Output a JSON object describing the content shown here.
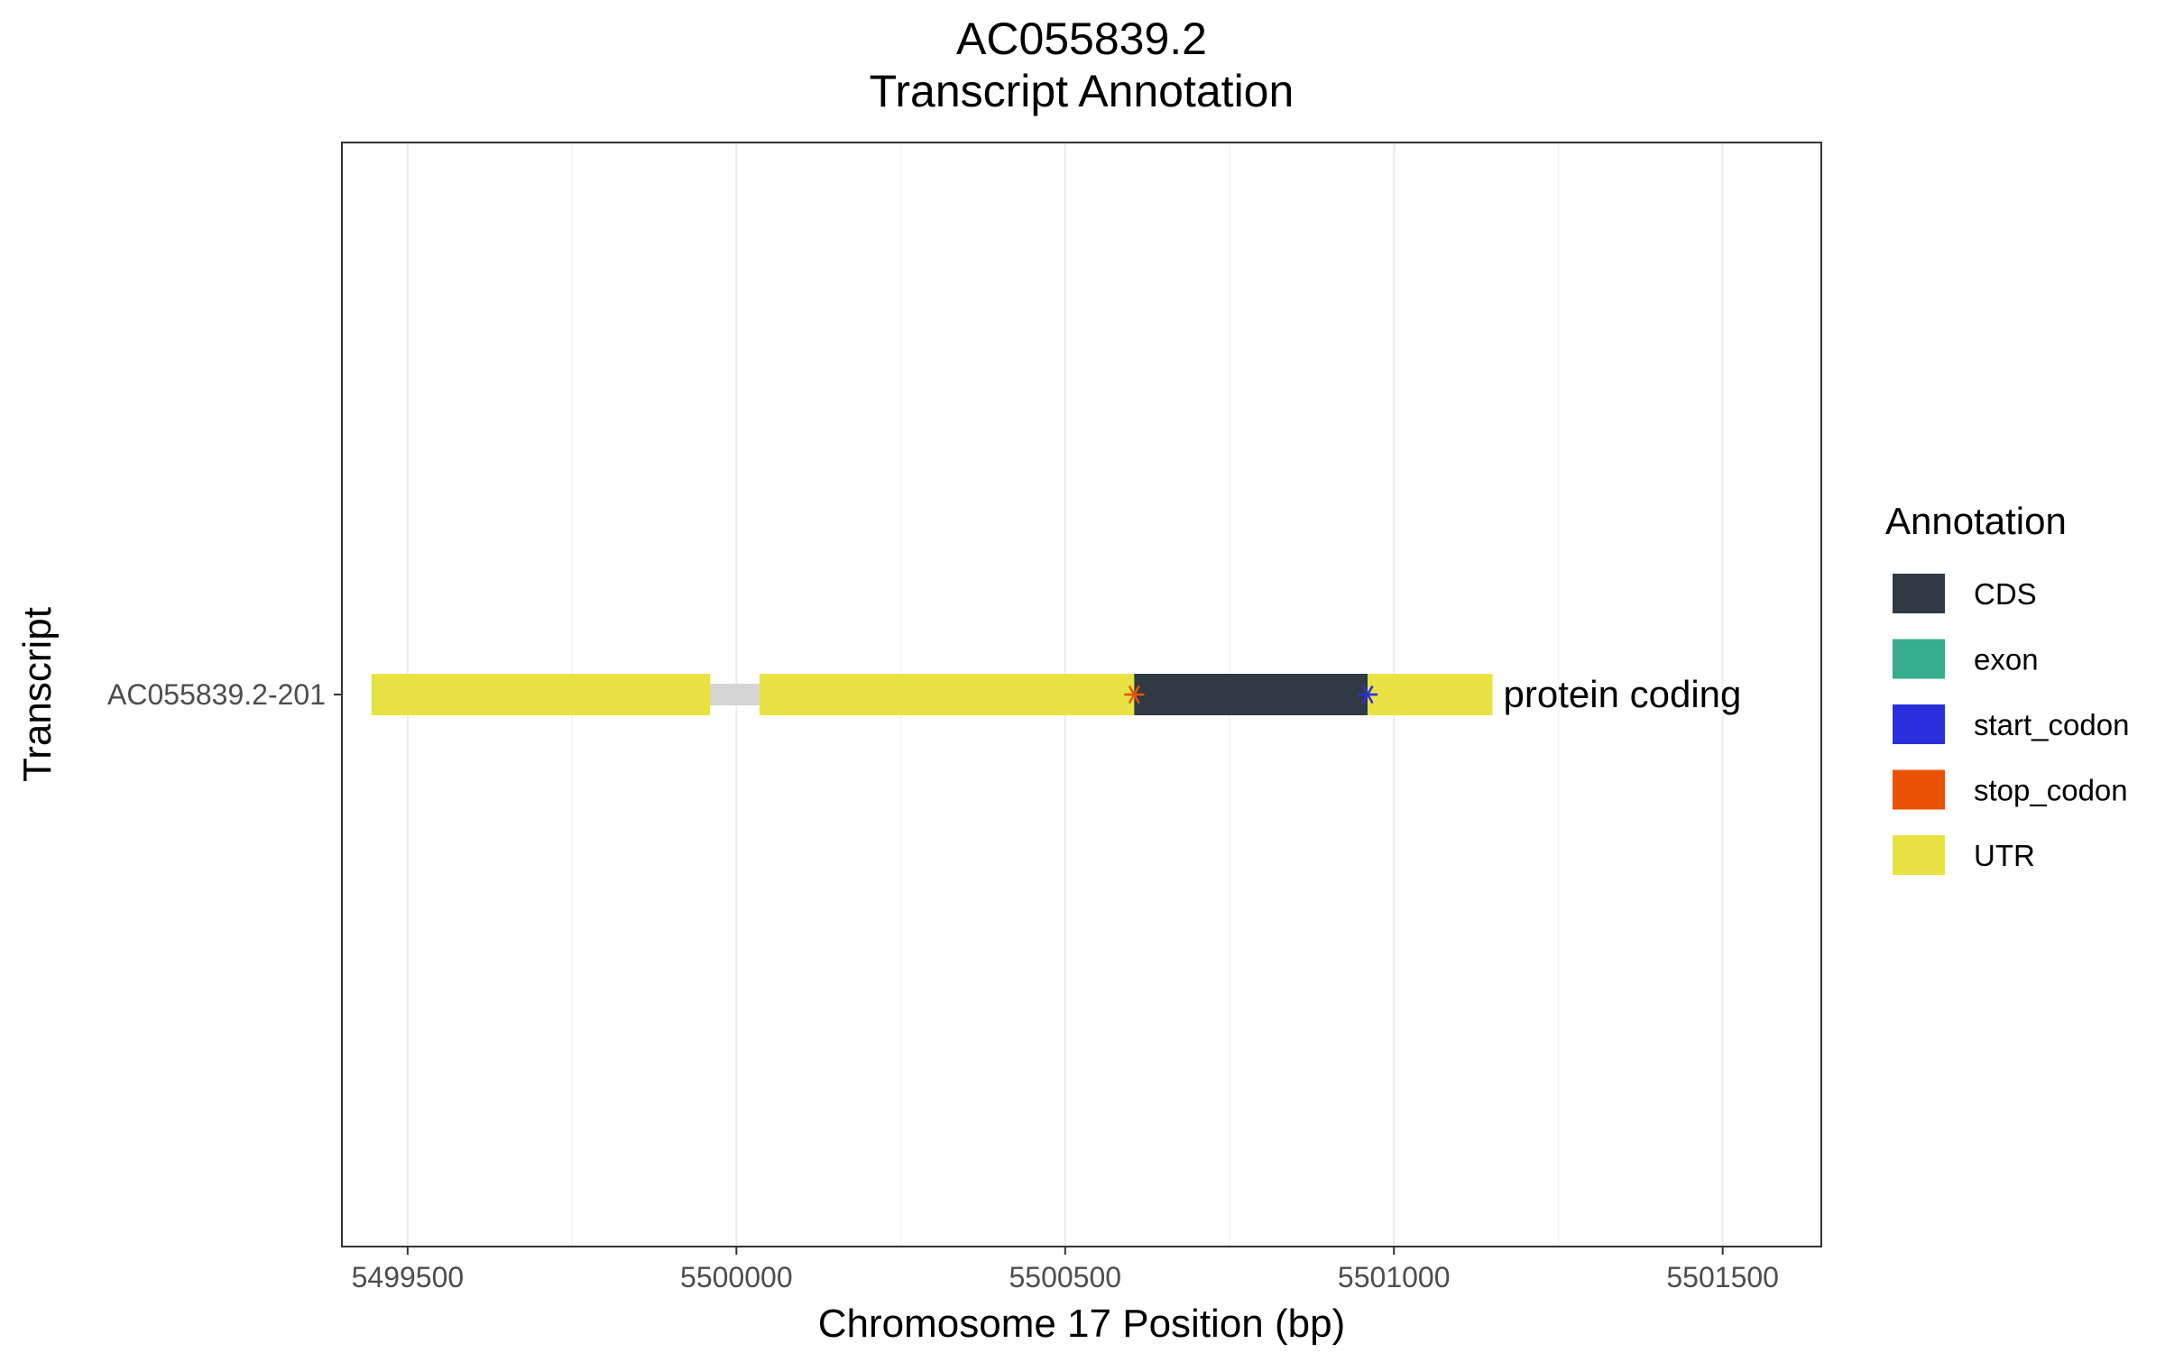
{
  "chart_data": {
    "type": "gene_track",
    "title_lines": [
      "AC055839.2",
      "Transcript Annotation"
    ],
    "xlabel": "Chromosome 17 Position (bp)",
    "ylabel": "Transcript",
    "xlim": [
      5499400,
      5501650
    ],
    "x_ticks": [
      5499500,
      5500000,
      5500500,
      5501000,
      5501500
    ],
    "grid": true,
    "transcripts": [
      {
        "name": "AC055839.2-201",
        "biotype_label": "protein coding",
        "intron": {
          "start": 5499960,
          "end": 5500035
        },
        "features": [
          {
            "type": "UTR",
            "start": 5499445,
            "end": 5499960
          },
          {
            "type": "UTR",
            "start": 5500035,
            "end": 5500605
          },
          {
            "type": "CDS",
            "start": 5500605,
            "end": 5500960
          },
          {
            "type": "UTR",
            "start": 5500960,
            "end": 5501150
          }
        ],
        "markers": [
          {
            "type": "stop_codon",
            "position": 5500605
          },
          {
            "type": "start_codon",
            "position": 5500960
          }
        ]
      }
    ],
    "legend": {
      "title": "Annotation",
      "position": "right",
      "items": [
        {
          "label": "CDS",
          "color": "#2f3a45"
        },
        {
          "label": "exon",
          "color": "#36ad8d"
        },
        {
          "label": "start_codon",
          "color": "#2b2fdb"
        },
        {
          "label": "stop_codon",
          "color": "#ea5306"
        },
        {
          "label": "UTR",
          "color": "#e9e243"
        }
      ]
    },
    "intron_color": "#d5d5d5"
  }
}
